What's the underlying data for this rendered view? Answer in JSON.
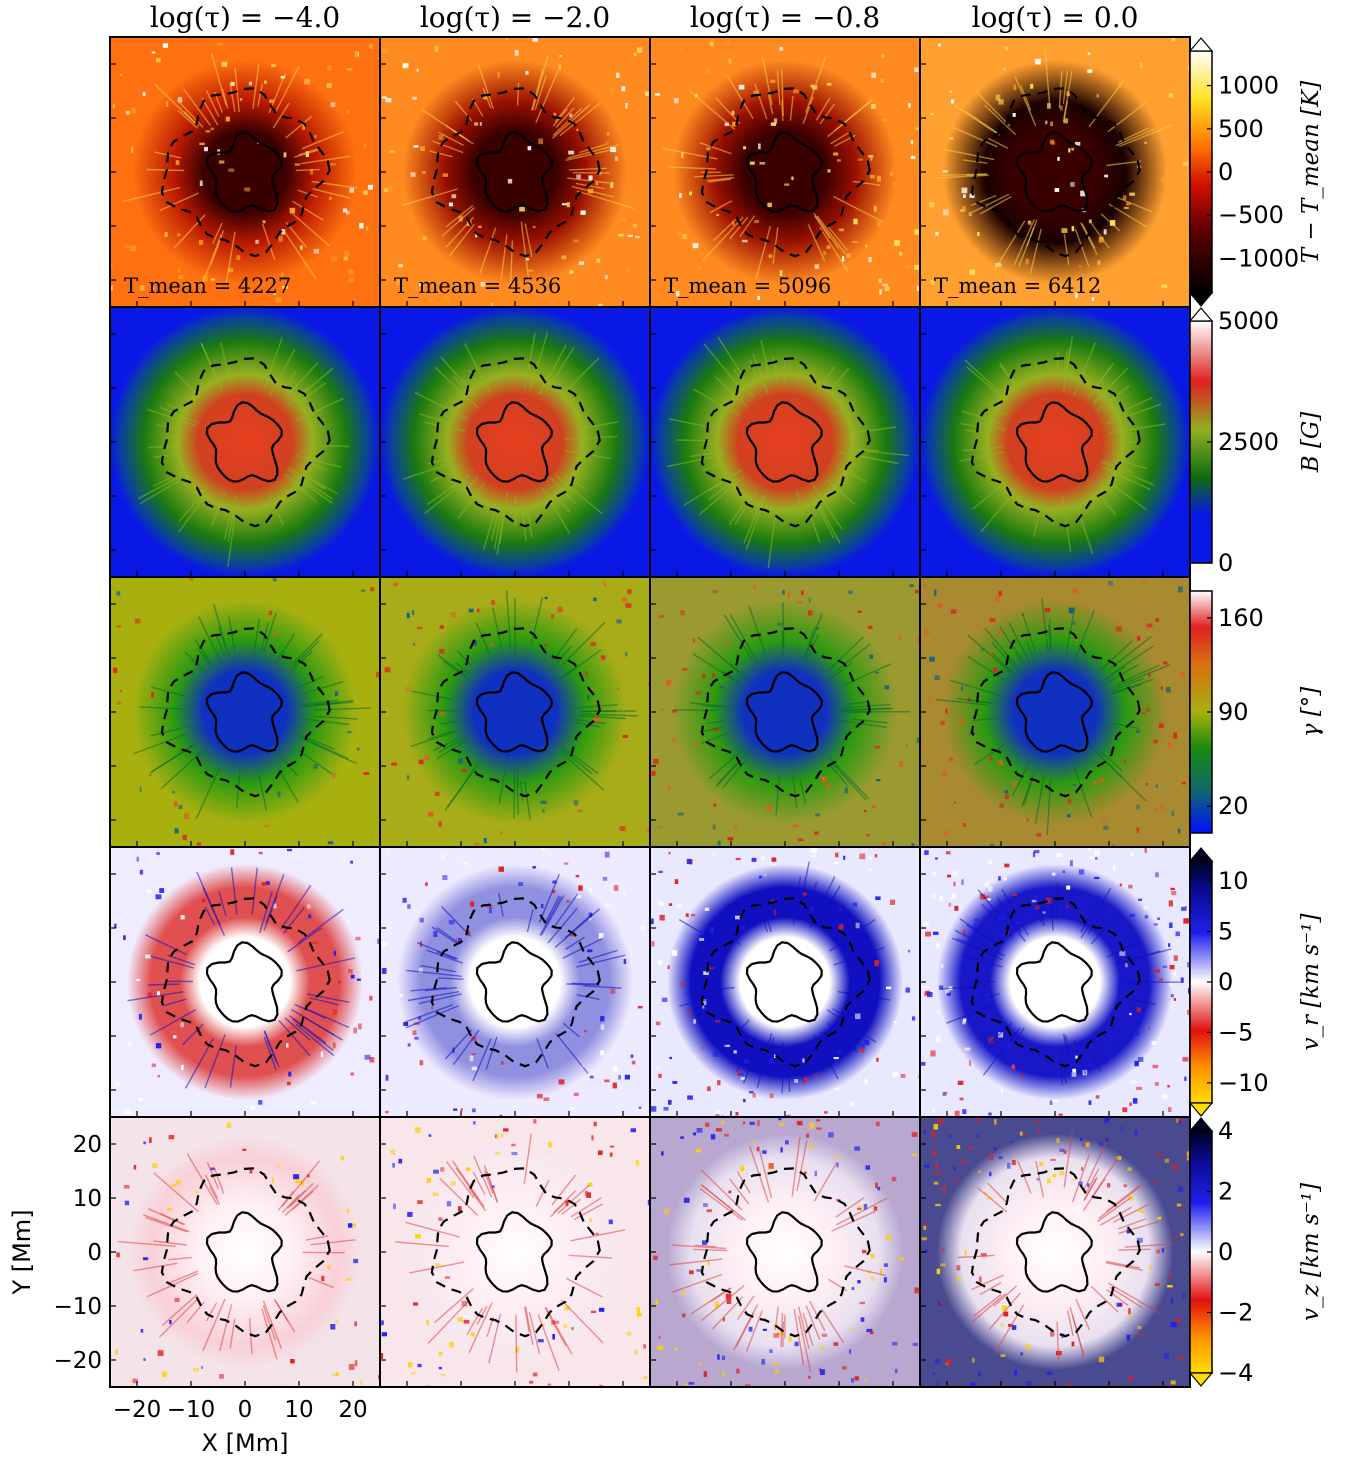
{
  "chart_data": {
    "type": "heatmap",
    "column_titles": [
      "log(τ) = −4.0",
      "log(τ) = −2.0",
      "log(τ) = −0.8",
      "log(τ) = 0.0"
    ],
    "annotations": [
      {
        "text": "T_mean = 4227",
        "row": 0,
        "col": 0
      },
      {
        "text": "T_mean = 4536",
        "row": 0,
        "col": 1
      },
      {
        "text": "T_mean = 5096",
        "row": 0,
        "col": 2
      },
      {
        "text": "T_mean = 6412",
        "row": 0,
        "col": 3
      }
    ],
    "rows": [
      {
        "quantity": "temperature",
        "colorbar_label": "T − T_mean [K]",
        "ticks": [
          1000,
          500,
          0,
          -500,
          -1000
        ],
        "tick_labels": [
          "1000",
          "500",
          "0",
          "−500",
          "−1000"
        ],
        "range": [
          -1400,
          1400
        ],
        "colormap": "hot",
        "extend": "both"
      },
      {
        "quantity": "field-strength",
        "colorbar_label": "B [G]",
        "ticks": [
          5000,
          2500,
          0
        ],
        "tick_labels": [
          "5000",
          "2500",
          "0"
        ],
        "range": [
          0,
          5000
        ],
        "colormap": "blue-green-red-white",
        "extend": "max"
      },
      {
        "quantity": "inclination",
        "colorbar_label": "γ [°]",
        "ticks": [
          160,
          90,
          20
        ],
        "tick_labels": [
          "160",
          "90",
          "20"
        ],
        "range": [
          0,
          180
        ],
        "colormap": "blue-green-olive-red-white",
        "extend": "neither"
      },
      {
        "quantity": "radial-velocity",
        "colorbar_label": "v_r [km s⁻¹]",
        "ticks": [
          10,
          5,
          0,
          -5,
          -10
        ],
        "tick_labels": [
          "10",
          "5",
          "0",
          "−5",
          "−10"
        ],
        "range": [
          -12,
          12
        ],
        "colormap": "blue-white-red-yellow",
        "extend": "both"
      },
      {
        "quantity": "vertical-velocity",
        "colorbar_label": "v_z [km s⁻¹]",
        "ticks": [
          4,
          2,
          0,
          -2,
          -4
        ],
        "tick_labels": [
          "4",
          "2",
          "0",
          "−2",
          "−4"
        ],
        "range": [
          -4,
          4
        ],
        "colormap": "blue-white-red-yellow",
        "extend": "both"
      }
    ],
    "xlabel": "X [Mm]",
    "ylabel": "Y [Mm]",
    "x_ticks": [
      -20,
      -10,
      0,
      10,
      20
    ],
    "x_tick_labels": [
      "−20",
      "−10",
      "0",
      "10",
      "20"
    ],
    "y_ticks": [
      20,
      10,
      0,
      -10,
      -20
    ],
    "y_tick_labels": [
      "20",
      "10",
      "0",
      "−10",
      "−20"
    ],
    "xlim": [
      -25,
      25
    ],
    "ylim": [
      -25,
      25
    ],
    "contours": [
      {
        "style": "solid",
        "boundary": "umbra",
        "radius_Mm": 7
      },
      {
        "style": "dashed",
        "boundary": "penumbra",
        "radius_Mm": 14
      }
    ]
  }
}
